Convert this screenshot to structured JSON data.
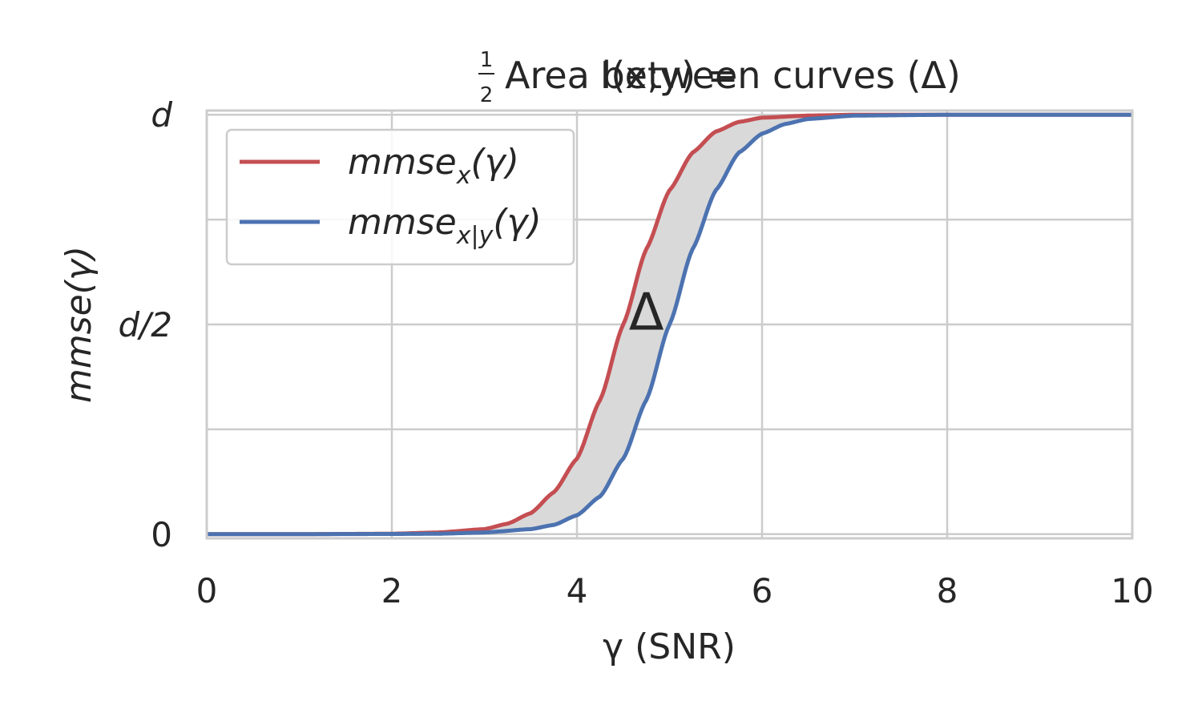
{
  "chart_data": {
    "type": "line",
    "title_parts": {
      "prefix": "I(x;y) = ",
      "frac_num": "1",
      "frac_den": "2",
      "suffix": " Area between curves (Δ)"
    },
    "xlabel": "γ (SNR)",
    "ylabel": "mmse(γ)",
    "xlim": [
      0,
      10
    ],
    "ylim": [
      -0.01,
      1.01
    ],
    "x_ticks": [
      0,
      2,
      4,
      6,
      8,
      10
    ],
    "x_tick_labels": [
      "0",
      "2",
      "4",
      "6",
      "8",
      "10"
    ],
    "y_ticks": [
      0,
      0.5,
      1
    ],
    "y_tick_labels": [
      "0",
      "d/2",
      "d"
    ],
    "y_grid": [
      0,
      0.25,
      0.5,
      0.75,
      1
    ],
    "grid": true,
    "legend_position": "upper-left",
    "annotation": {
      "text": "Δ",
      "x": 4.75,
      "y": 0.53
    },
    "series": [
      {
        "name_main": "mmse",
        "name_sub": "x",
        "name_tail": "(γ)",
        "color": "#c44e52",
        "x": [
          0,
          1,
          2,
          2.5,
          3,
          3.25,
          3.5,
          3.75,
          4,
          4.25,
          4.5,
          4.75,
          5,
          5.25,
          5.5,
          5.75,
          6,
          6.5,
          7,
          8,
          9,
          10
        ],
        "y": [
          0,
          0,
          0.001,
          0.004,
          0.012,
          0.025,
          0.05,
          0.1,
          0.18,
          0.32,
          0.5,
          0.68,
          0.82,
          0.91,
          0.96,
          0.983,
          0.993,
          0.998,
          1,
          1,
          1,
          1
        ]
      },
      {
        "name_main": "mmse",
        "name_sub": "x|y",
        "name_tail": "(γ)",
        "color": "#4c72b0",
        "x": [
          0,
          1,
          2,
          2.5,
          3,
          3.5,
          3.75,
          4,
          4.25,
          4.5,
          4.75,
          5,
          5.25,
          5.5,
          5.75,
          6,
          6.25,
          6.5,
          7,
          8,
          9,
          10
        ],
        "y": [
          0,
          0,
          0.0005,
          0.001,
          0.004,
          0.012,
          0.022,
          0.045,
          0.09,
          0.18,
          0.32,
          0.5,
          0.68,
          0.82,
          0.91,
          0.955,
          0.978,
          0.99,
          0.998,
          1,
          1,
          1
        ]
      }
    ],
    "fill_between": {
      "color": "#d9d9d9",
      "series": [
        0,
        1
      ]
    }
  }
}
